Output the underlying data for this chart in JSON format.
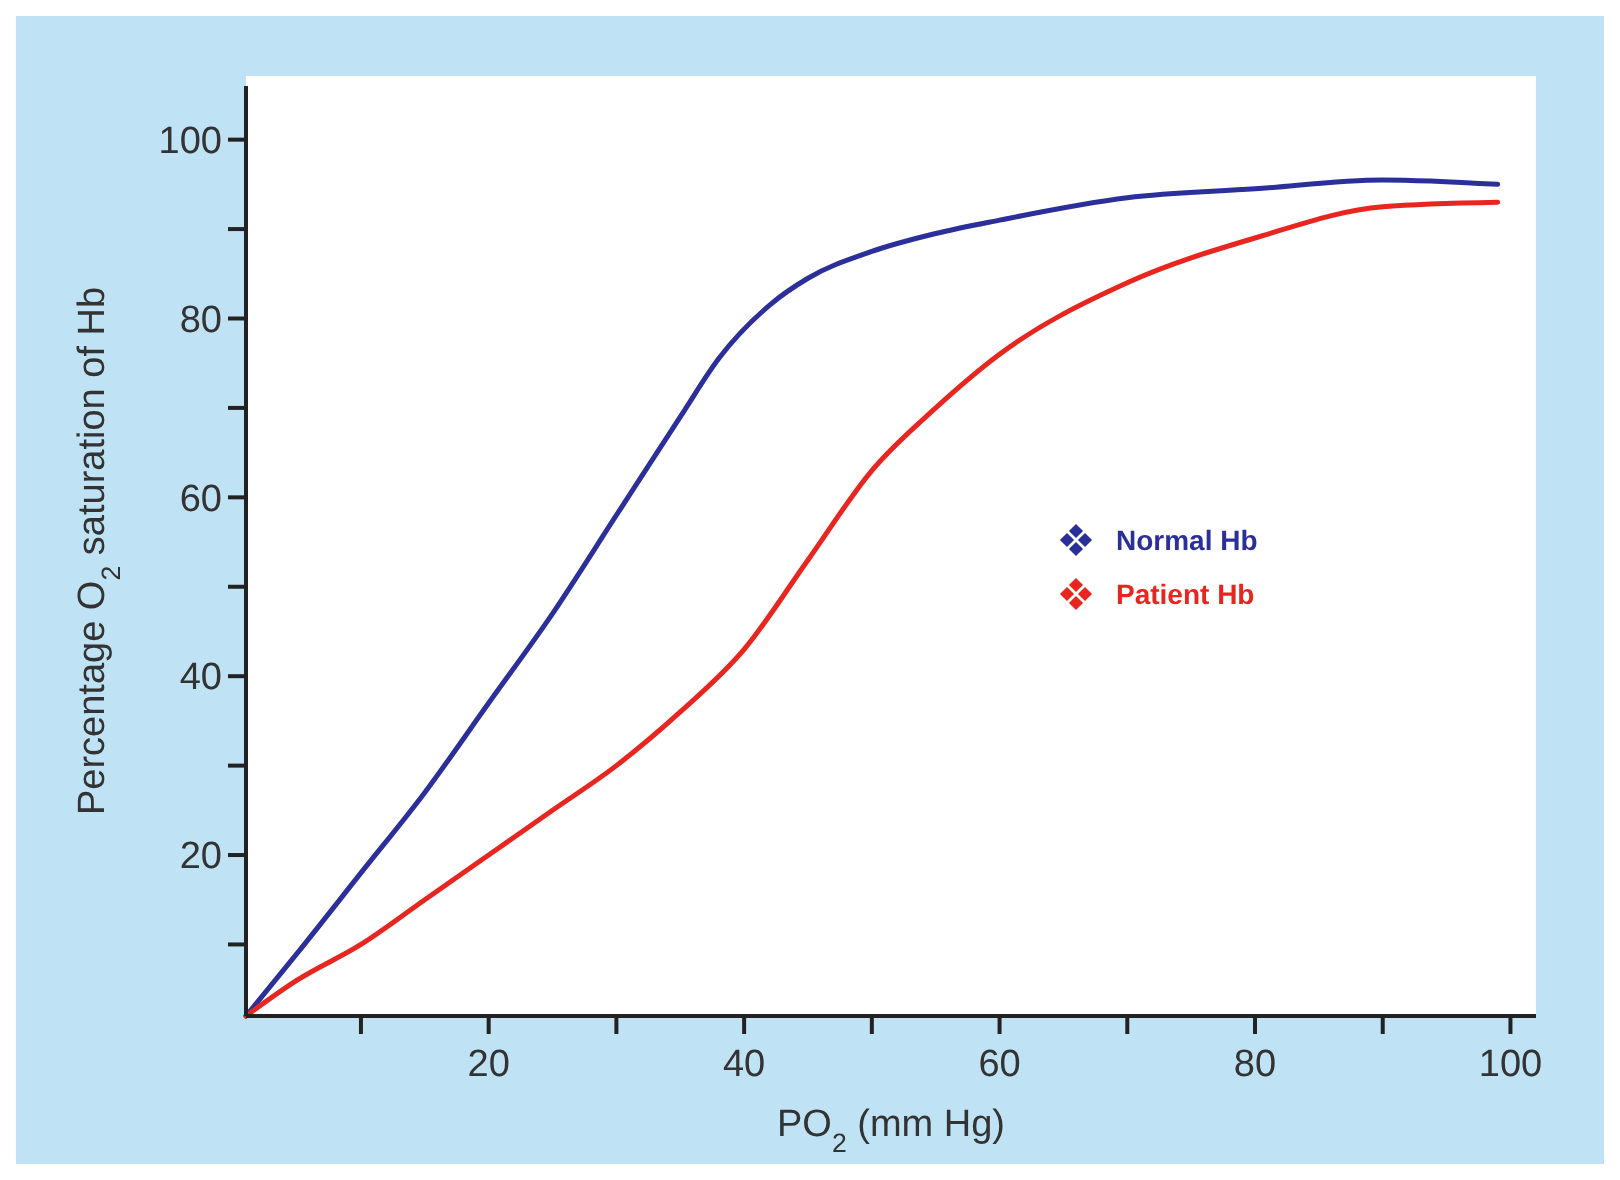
{
  "chart_data": {
    "type": "line",
    "xlabel": "PO$_{2}$ (mm Hg)",
    "ylabel": "Percentage O$_{2}$ saturation of Hb",
    "xlim": [
      1,
      102
    ],
    "ylim": [
      2,
      106
    ],
    "xticks": [
      {
        "value": 10,
        "label": null
      },
      20,
      {
        "value": 30,
        "label": null
      },
      40,
      {
        "value": 50,
        "label": null
      },
      60,
      {
        "value": 70,
        "label": null
      },
      80,
      {
        "value": 90,
        "label": null
      },
      100
    ],
    "yticks": [
      {
        "value": 10,
        "label": null
      },
      20,
      {
        "value": 30,
        "label": null
      },
      40,
      {
        "value": 50,
        "label": null
      },
      60,
      {
        "value": 70,
        "label": null
      },
      80,
      {
        "value": 90,
        "label": null
      },
      100
    ],
    "legend": "right",
    "marker": "none",
    "line_style": "solid",
    "grid": false,
    "series": [
      {
        "name": "Normal Hb",
        "color": "#2b2f9a",
        "x": [
          1,
          5,
          10,
          15,
          20,
          25,
          30,
          35,
          38,
          42,
          45,
          50,
          55,
          60,
          70,
          80,
          90,
          99
        ],
        "values": [
          2,
          9,
          18,
          27,
          37,
          47,
          58,
          69,
          75.5,
          81.5,
          84.5,
          87.5,
          89.5,
          91,
          93.5,
          94.5,
          95.5,
          95
        ]
      },
      {
        "name": "Patient Hb",
        "color": "#e8251f",
        "x": [
          1,
          5,
          10,
          15,
          20,
          25,
          30,
          35,
          40,
          45,
          50,
          55,
          60,
          70,
          80,
          90,
          99
        ],
        "values": [
          2,
          6,
          10,
          15,
          20,
          25,
          30,
          36,
          43,
          53,
          63,
          70,
          76,
          84,
          89,
          92.5,
          93
        ]
      }
    ]
  }
}
